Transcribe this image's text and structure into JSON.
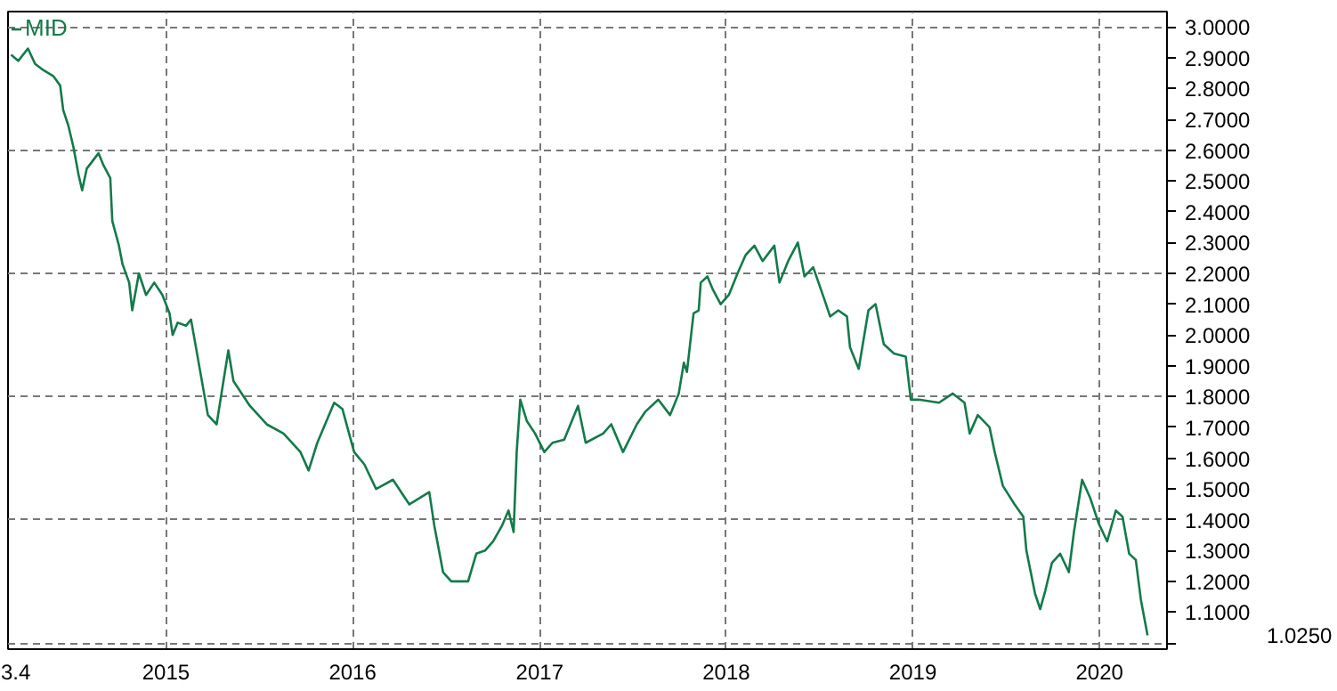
{
  "chart_data": {
    "type": "line",
    "legend": "top left",
    "grid": true,
    "line_style": "solid",
    "marker": "none",
    "xlim": [
      "2014-02-26",
      "2020-05-12"
    ],
    "xticks": [
      {
        "value": "2014-03-04",
        "label": "3.4"
      },
      {
        "value": "2015-01-01",
        "label": "2015"
      },
      {
        "value": "2016-01-01",
        "label": "2016"
      },
      {
        "value": "2017-01-01",
        "label": "2017"
      },
      {
        "value": "2018-01-01",
        "label": "2018"
      },
      {
        "value": "2019-01-01",
        "label": "2019"
      },
      {
        "value": "2020-01-01",
        "label": "2020"
      }
    ],
    "ylim": [
      0.98,
      3.05
    ],
    "yticks": [
      {
        "value": 1.0,
        "label": null
      },
      {
        "value": 1.1,
        "label": "1.1000"
      },
      {
        "value": 1.2,
        "label": "1.2000"
      },
      {
        "value": 1.3,
        "label": "1.3000"
      },
      {
        "value": 1.4,
        "label": "1.4000"
      },
      {
        "value": 1.5,
        "label": "1.5000"
      },
      {
        "value": 1.6,
        "label": "1.6000"
      },
      {
        "value": 1.7,
        "label": "1.7000"
      },
      {
        "value": 1.8,
        "label": "1.8000"
      },
      {
        "value": 1.9,
        "label": "1.9000"
      },
      {
        "value": 2.0,
        "label": "2.0000"
      },
      {
        "value": 2.1,
        "label": "2.1000"
      },
      {
        "value": 2.2,
        "label": "2.2000"
      },
      {
        "value": 2.3,
        "label": "2.3000"
      },
      {
        "value": 2.4,
        "label": "2.4000"
      },
      {
        "value": 2.5,
        "label": "2.5000"
      },
      {
        "value": 2.6,
        "label": "2.6000"
      },
      {
        "value": 2.7,
        "label": "2.7000"
      },
      {
        "value": 2.8,
        "label": "2.8000"
      },
      {
        "value": 2.9,
        "label": "2.9000"
      },
      {
        "value": 3.0,
        "label": "3.0000"
      }
    ],
    "annotations": [
      "1.0250"
    ],
    "series": [
      {
        "name": "MID",
        "color": "#137a4a",
        "x": [
          "2014-03-04",
          "2014-03-18",
          "2014-04-06",
          "2014-04-20",
          "2014-05-06",
          "2014-05-26",
          "2014-06-08",
          "2014-06-14",
          "2014-06-24",
          "2014-07-04",
          "2014-07-14",
          "2014-07-21",
          "2014-07-30",
          "2014-08-22",
          "2014-09-01",
          "2014-09-14",
          "2014-09-18",
          "2014-10-01",
          "2014-10-08",
          "2014-10-21",
          "2014-10-27",
          "2014-11-09",
          "2014-11-23",
          "2014-12-09",
          "2014-12-25",
          "2015-01-08",
          "2015-01-14",
          "2015-01-24",
          "2015-02-09",
          "2015-02-19",
          "2015-03-24",
          "2015-04-10",
          "2015-05-03",
          "2015-05-13",
          "2015-06-14",
          "2015-07-17",
          "2015-08-19",
          "2015-09-21",
          "2015-10-07",
          "2015-10-24",
          "2015-11-26",
          "2015-12-12",
          "2016-01-04",
          "2016-01-24",
          "2016-02-16",
          "2016-03-20",
          "2016-04-21",
          "2016-05-30",
          "2016-06-09",
          "2016-06-26",
          "2016-07-12",
          "2016-08-14",
          "2016-08-30",
          "2016-09-16",
          "2016-10-02",
          "2016-10-19",
          "2016-11-01",
          "2016-11-11",
          "2016-11-17",
          "2016-11-24",
          "2016-12-07",
          "2016-12-23",
          "2017-01-10",
          "2017-01-26",
          "2017-02-18",
          "2017-03-17",
          "2017-04-01",
          "2017-05-05",
          "2017-05-21",
          "2017-06-13",
          "2017-07-10",
          "2017-07-26",
          "2017-08-21",
          "2017-09-13",
          "2017-09-30",
          "2017-10-10",
          "2017-10-16",
          "2017-10-29",
          "2017-11-08",
          "2017-11-12",
          "2017-11-25",
          "2017-12-05",
          "2017-12-21",
          "2018-01-06",
          "2018-01-23",
          "2018-02-08",
          "2018-02-25",
          "2018-03-13",
          "2018-04-05",
          "2018-04-15",
          "2018-05-02",
          "2018-05-21",
          "2018-06-03",
          "2018-06-20",
          "2018-07-13",
          "2018-07-23",
          "2018-08-08",
          "2018-08-25",
          "2018-08-31",
          "2018-09-17",
          "2018-10-06",
          "2018-10-20",
          "2018-11-05",
          "2018-11-25",
          "2018-12-18",
          "2018-12-28",
          "2019-01-13",
          "2019-02-21",
          "2019-03-20",
          "2019-04-12",
          "2019-04-22",
          "2019-05-08",
          "2019-05-31",
          "2019-06-10",
          "2019-06-26",
          "2019-07-19",
          "2019-08-05",
          "2019-08-11",
          "2019-08-28",
          "2019-09-07",
          "2019-09-17",
          "2019-09-30",
          "2019-10-16",
          "2019-11-02",
          "2019-11-12",
          "2019-11-28",
          "2019-12-14",
          "2019-12-30",
          "2020-01-16",
          "2020-02-02",
          "2020-02-15",
          "2020-02-28",
          "2020-03-12",
          "2020-03-22",
          "2020-04-04"
        ],
        "values": [
          2.91,
          2.89,
          2.93,
          2.88,
          2.86,
          2.84,
          2.81,
          2.73,
          2.68,
          2.61,
          2.52,
          2.47,
          2.54,
          2.59,
          2.55,
          2.51,
          2.37,
          2.29,
          2.23,
          2.17,
          2.08,
          2.2,
          2.13,
          2.17,
          2.13,
          2.07,
          2.0,
          2.04,
          2.03,
          2.05,
          1.74,
          1.71,
          1.95,
          1.85,
          1.77,
          1.71,
          1.68,
          1.62,
          1.56,
          1.65,
          1.78,
          1.76,
          1.62,
          1.58,
          1.5,
          1.53,
          1.45,
          1.49,
          1.38,
          1.23,
          1.2,
          1.2,
          1.29,
          1.3,
          1.33,
          1.38,
          1.43,
          1.36,
          1.62,
          1.79,
          1.72,
          1.68,
          1.62,
          1.65,
          1.66,
          1.77,
          1.65,
          1.68,
          1.71,
          1.62,
          1.71,
          1.75,
          1.79,
          1.74,
          1.81,
          1.91,
          1.88,
          2.07,
          2.08,
          2.17,
          2.19,
          2.15,
          2.1,
          2.13,
          2.2,
          2.26,
          2.29,
          2.24,
          2.29,
          2.17,
          2.24,
          2.3,
          2.19,
          2.22,
          2.11,
          2.06,
          2.08,
          2.06,
          1.96,
          1.89,
          2.08,
          2.1,
          1.97,
          1.94,
          1.93,
          1.79,
          1.79,
          1.78,
          1.81,
          1.78,
          1.68,
          1.74,
          1.7,
          1.62,
          1.51,
          1.45,
          1.41,
          1.3,
          1.16,
          1.11,
          1.17,
          1.26,
          1.29,
          1.23,
          1.36,
          1.53,
          1.47,
          1.39,
          1.33,
          1.43,
          1.41,
          1.29,
          1.27,
          1.14,
          1.025
        ]
      }
    ]
  }
}
